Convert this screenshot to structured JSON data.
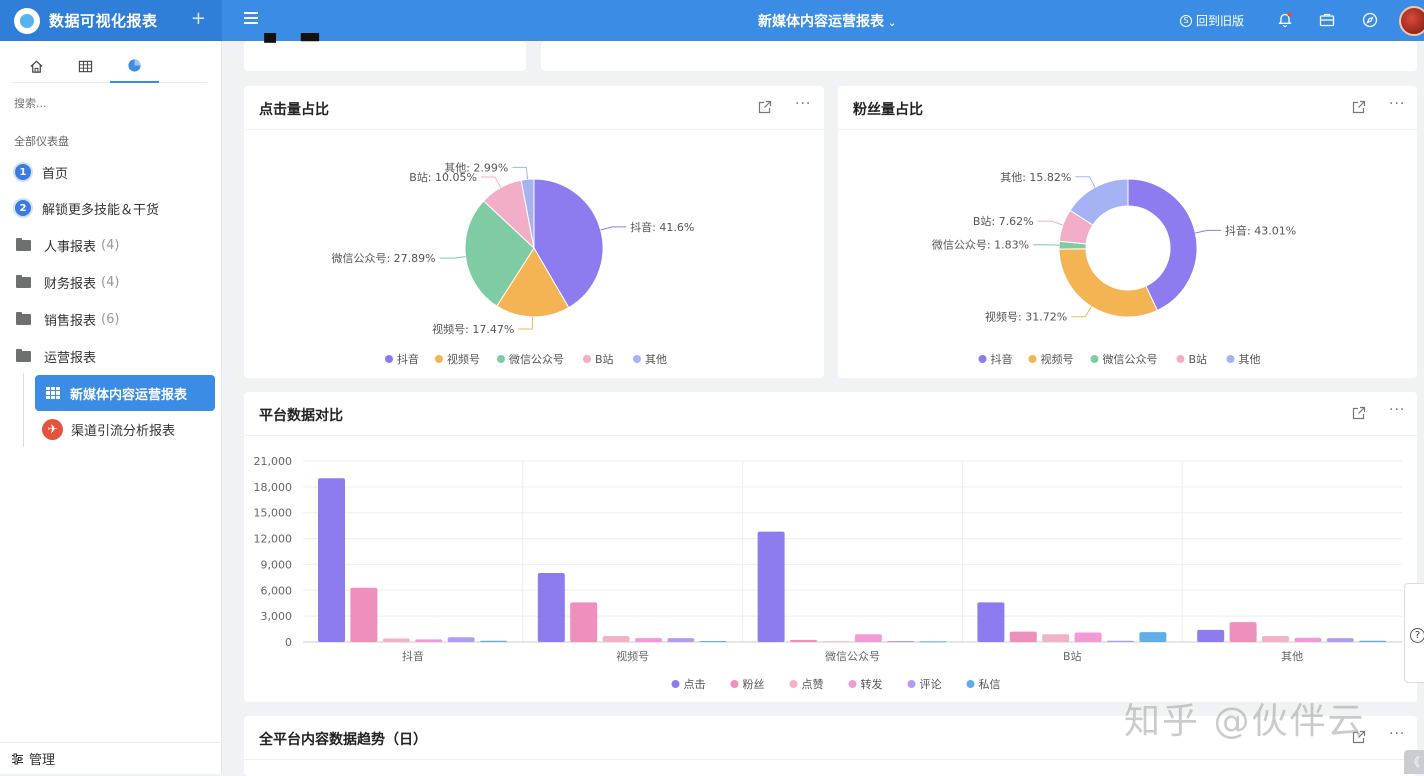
{
  "app": {
    "title": "数据可视化报表",
    "add_icon": "plus-icon"
  },
  "header": {
    "report_title": "新媒体内容运营报表",
    "back_old_label": "回到旧版",
    "icons": [
      "menu-icon",
      "bell-icon",
      "briefcase-icon",
      "compass-icon"
    ],
    "accent_color": "#3b8ce4"
  },
  "sidebar": {
    "tabs": [
      "home-icon",
      "table-icon",
      "pie-chart-icon"
    ],
    "search_placeholder": "搜索...",
    "section_label": "全部仪表盘",
    "items": [
      {
        "badge": "1",
        "label": "首页"
      },
      {
        "badge": "2",
        "label": "解锁更多技能＆干货"
      },
      {
        "label": "人事报表",
        "count": "(4)"
      },
      {
        "label": "财务报表",
        "count": "(4)"
      },
      {
        "label": "销售报表",
        "count": "(6)"
      },
      {
        "label": "运营报表"
      }
    ],
    "sub_items": [
      {
        "label": "新媒体内容运营报表",
        "active": true
      },
      {
        "label": "渠道引流分析报表"
      }
    ],
    "manage_label": "管理"
  },
  "cards": {
    "clicks_title": "点击量占比",
    "fans_title": "粉丝量占比",
    "platform_title": "平台数据对比",
    "trend_title": "全平台内容数据趋势（日）"
  },
  "chart_data": [
    {
      "type": "pie",
      "title": "点击量占比",
      "labels": [
        "抖音",
        "视频号",
        "微信公众号",
        "B站",
        "其他"
      ],
      "values": [
        41.6,
        17.47,
        27.89,
        10.05,
        2.99
      ],
      "slice_labels": [
        "抖音: 41.6%",
        "视频号: 17.47%",
        "微信公众号: 27.89%",
        "B站: 10.05%",
        "其他: 2.99%"
      ],
      "colors": [
        "#8c7cf0",
        "#f5b453",
        "#7fcba3",
        "#f2aec8",
        "#a5b3f5"
      ],
      "legend": "bottom"
    },
    {
      "type": "pie",
      "title": "粉丝量占比",
      "donut": true,
      "labels": [
        "抖音",
        "视频号",
        "微信公众号",
        "B站",
        "其他"
      ],
      "values": [
        43.01,
        31.72,
        1.83,
        7.62,
        15.82
      ],
      "slice_labels": [
        "抖音: 43.01%",
        "视频号: 31.72%",
        "微信公众号: 1.83%",
        "B站: 7.62%",
        "其他: 15.82%"
      ],
      "colors": [
        "#8c7cf0",
        "#f5b453",
        "#7fcba3",
        "#f2aec8",
        "#a5b3f5"
      ],
      "legend": "bottom"
    },
    {
      "type": "bar",
      "title": "平台数据对比",
      "categories": [
        "抖音",
        "视频号",
        "微信公众号",
        "B站",
        "其他"
      ],
      "ylim": [
        0,
        21000
      ],
      "yticks": [
        "0",
        "3,000",
        "6,000",
        "9,000",
        "12,000",
        "15,000",
        "18,000",
        "21,000"
      ],
      "ytick_values": [
        0,
        3000,
        6000,
        9000,
        12000,
        15000,
        18000,
        21000
      ],
      "grid": true,
      "legend": "bottom",
      "series": [
        {
          "name": "点击",
          "color": "#8c7cf0",
          "values": [
            19000,
            8000,
            12800,
            4600,
            1400
          ]
        },
        {
          "name": "粉丝",
          "color": "#ef8fbd",
          "values": [
            6300,
            4600,
            250,
            1200,
            2300
          ]
        },
        {
          "name": "点赞",
          "color": "#f2b3c6",
          "values": [
            400,
            700,
            80,
            900,
            700
          ]
        },
        {
          "name": "转发",
          "color": "#f09ad6",
          "values": [
            300,
            450,
            900,
            1100,
            500
          ]
        },
        {
          "name": "评论",
          "color": "#b39cf0",
          "values": [
            550,
            450,
            120,
            150,
            450
          ]
        },
        {
          "name": "私信",
          "color": "#5faee8",
          "values": [
            150,
            120,
            80,
            1150,
            150
          ]
        }
      ]
    }
  ],
  "overlay": {
    "watermark": "知乎 @伙伴云",
    "float_q": "?",
    "collapse": "《"
  }
}
